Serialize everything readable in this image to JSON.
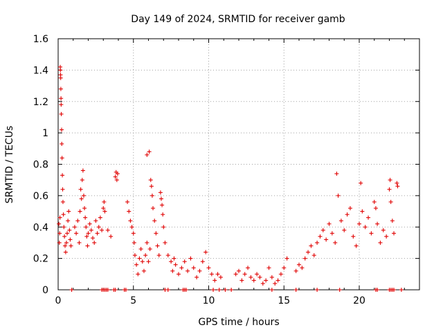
{
  "chart_data": {
    "type": "scatter",
    "title": "Day 149 of 2024, SRMTID for receiver gamb",
    "xlabel": "GPS time / hours",
    "ylabel": "SRMTID / TECUs",
    "xlim": [
      0,
      24
    ],
    "ylim": [
      0,
      1.6
    ],
    "xticks": [
      0,
      5,
      10,
      15,
      20
    ],
    "yticks": [
      0,
      0.2,
      0.4,
      0.6,
      0.8,
      1,
      1.2,
      1.4,
      1.6
    ],
    "xtick_labels": [
      "0",
      "5",
      "10",
      "15",
      "20"
    ],
    "ytick_labels": [
      "0",
      "0.2",
      "0.4",
      "0.6",
      "0.8",
      "1",
      "1.2",
      "1.4",
      "1.6"
    ],
    "grid": true,
    "marker": "plus",
    "color": "#e00000",
    "series": [
      {
        "name": "SRMTID",
        "points": [
          [
            0.05,
            0.42
          ],
          [
            0.08,
            0.3
          ],
          [
            0.1,
            0.36
          ],
          [
            0.12,
            0.46
          ],
          [
            0.14,
            1.42
          ],
          [
            0.15,
            1.4
          ],
          [
            0.16,
            1.37
          ],
          [
            0.17,
            1.35
          ],
          [
            0.18,
            1.28
          ],
          [
            0.19,
            1.22
          ],
          [
            0.2,
            1.18
          ],
          [
            0.21,
            1.12
          ],
          [
            0.23,
            1.02
          ],
          [
            0.24,
            0.93
          ],
          [
            0.26,
            0.84
          ],
          [
            0.28,
            0.73
          ],
          [
            0.3,
            0.64
          ],
          [
            0.32,
            0.56
          ],
          [
            0.35,
            0.48
          ],
          [
            0.38,
            0.4
          ],
          [
            0.42,
            0.34
          ],
          [
            0.46,
            0.28
          ],
          [
            0.5,
            0.24
          ],
          [
            0.55,
            0.3
          ],
          [
            0.6,
            0.36
          ],
          [
            0.65,
            0.44
          ],
          [
            0.7,
            0.5
          ],
          [
            0.75,
            0.38
          ],
          [
            0.8,
            0.32
          ],
          [
            0.85,
            0.28
          ],
          [
            1.1,
            0.4
          ],
          [
            1.2,
            0.36
          ],
          [
            1.3,
            0.44
          ],
          [
            1.4,
            0.3
          ],
          [
            1.45,
            0.5
          ],
          [
            1.5,
            0.64
          ],
          [
            1.55,
            0.58
          ],
          [
            1.6,
            0.7
          ],
          [
            1.65,
            0.76
          ],
          [
            1.7,
            0.6
          ],
          [
            1.75,
            0.52
          ],
          [
            1.8,
            0.46
          ],
          [
            1.85,
            0.4
          ],
          [
            1.9,
            0.34
          ],
          [
            1.95,
            0.28
          ],
          [
            2.0,
            0.36
          ],
          [
            2.1,
            0.42
          ],
          [
            2.2,
            0.38
          ],
          [
            2.3,
            0.33
          ],
          [
            2.4,
            0.3
          ],
          [
            2.5,
            0.44
          ],
          [
            2.6,
            0.36
          ],
          [
            2.7,
            0.4
          ],
          [
            2.8,
            0.46
          ],
          [
            2.9,
            0.38
          ],
          [
            3.0,
            0.52
          ],
          [
            3.05,
            0.56
          ],
          [
            3.1,
            0.5
          ],
          [
            3.3,
            0.38
          ],
          [
            3.5,
            0.34
          ],
          [
            3.8,
            0.72
          ],
          [
            3.85,
            0.75
          ],
          [
            3.9,
            0.7
          ],
          [
            3.95,
            0.74
          ],
          [
            4.6,
            0.56
          ],
          [
            4.7,
            0.5
          ],
          [
            4.8,
            0.44
          ],
          [
            4.9,
            0.4
          ],
          [
            5.0,
            0.36
          ],
          [
            5.05,
            0.3
          ],
          [
            5.1,
            0.22
          ],
          [
            5.2,
            0.16
          ],
          [
            5.3,
            0.1
          ],
          [
            5.4,
            0.2
          ],
          [
            5.5,
            0.26
          ],
          [
            5.6,
            0.18
          ],
          [
            5.7,
            0.12
          ],
          [
            5.8,
            0.22
          ],
          [
            5.9,
            0.3
          ],
          [
            6.0,
            0.18
          ],
          [
            6.1,
            0.26
          ],
          [
            5.9,
            0.86
          ],
          [
            6.05,
            0.88
          ],
          [
            6.15,
            0.7
          ],
          [
            6.2,
            0.66
          ],
          [
            6.25,
            0.6
          ],
          [
            6.3,
            0.52
          ],
          [
            6.4,
            0.44
          ],
          [
            6.5,
            0.36
          ],
          [
            6.6,
            0.28
          ],
          [
            6.7,
            0.22
          ],
          [
            6.8,
            0.62
          ],
          [
            6.85,
            0.58
          ],
          [
            6.9,
            0.54
          ],
          [
            6.95,
            0.48
          ],
          [
            7.0,
            0.4
          ],
          [
            7.1,
            0.3
          ],
          [
            7.3,
            0.22
          ],
          [
            7.5,
            0.18
          ],
          [
            7.6,
            0.12
          ],
          [
            7.7,
            0.2
          ],
          [
            7.8,
            0.16
          ],
          [
            8.0,
            0.1
          ],
          [
            8.2,
            0.14
          ],
          [
            8.4,
            0.18
          ],
          [
            8.6,
            0.12
          ],
          [
            8.8,
            0.2
          ],
          [
            9.0,
            0.14
          ],
          [
            9.2,
            0.08
          ],
          [
            9.4,
            0.12
          ],
          [
            9.6,
            0.18
          ],
          [
            9.8,
            0.24
          ],
          [
            10.0,
            0.14
          ],
          [
            10.2,
            0.1
          ],
          [
            10.4,
            0.06
          ],
          [
            10.6,
            0.1
          ],
          [
            10.8,
            0.08
          ],
          [
            11.8,
            0.1
          ],
          [
            12.0,
            0.12
          ],
          [
            12.2,
            0.06
          ],
          [
            12.4,
            0.1
          ],
          [
            12.6,
            0.14
          ],
          [
            12.8,
            0.08
          ],
          [
            13.0,
            0.06
          ],
          [
            13.2,
            0.1
          ],
          [
            13.4,
            0.08
          ],
          [
            13.6,
            0.04
          ],
          [
            13.8,
            0.06
          ],
          [
            14.0,
            0.14
          ],
          [
            14.2,
            0.08
          ],
          [
            14.4,
            0.04
          ],
          [
            14.6,
            0.06
          ],
          [
            14.8,
            0.1
          ],
          [
            15.0,
            0.14
          ],
          [
            15.2,
            0.2
          ],
          [
            15.8,
            0.12
          ],
          [
            16.0,
            0.16
          ],
          [
            16.2,
            0.14
          ],
          [
            16.4,
            0.2
          ],
          [
            16.6,
            0.24
          ],
          [
            16.8,
            0.28
          ],
          [
            17.0,
            0.22
          ],
          [
            17.2,
            0.3
          ],
          [
            17.4,
            0.34
          ],
          [
            17.6,
            0.38
          ],
          [
            17.8,
            0.32
          ],
          [
            18.0,
            0.42
          ],
          [
            18.2,
            0.36
          ],
          [
            18.4,
            0.3
          ],
          [
            18.5,
            0.74
          ],
          [
            18.6,
            0.6
          ],
          [
            18.8,
            0.44
          ],
          [
            19.0,
            0.38
          ],
          [
            19.2,
            0.48
          ],
          [
            19.4,
            0.52
          ],
          [
            19.6,
            0.34
          ],
          [
            19.8,
            0.28
          ],
          [
            20.0,
            0.42
          ],
          [
            20.1,
            0.68
          ],
          [
            20.2,
            0.5
          ],
          [
            20.4,
            0.4
          ],
          [
            20.6,
            0.46
          ],
          [
            20.8,
            0.36
          ],
          [
            21.0,
            0.56
          ],
          [
            21.1,
            0.52
          ],
          [
            21.2,
            0.42
          ],
          [
            21.4,
            0.3
          ],
          [
            21.6,
            0.38
          ],
          [
            21.8,
            0.34
          ],
          [
            22.0,
            0.64
          ],
          [
            22.05,
            0.7
          ],
          [
            22.1,
            0.56
          ],
          [
            22.2,
            0.44
          ],
          [
            22.3,
            0.36
          ],
          [
            22.5,
            0.68
          ],
          [
            22.55,
            0.66
          ],
          [
            0.9,
            0
          ],
          [
            2.9,
            0
          ],
          [
            3.0,
            0
          ],
          [
            3.1,
            0
          ],
          [
            3.2,
            0
          ],
          [
            3.3,
            0
          ],
          [
            3.7,
            0
          ],
          [
            3.8,
            0
          ],
          [
            4.4,
            0
          ],
          [
            4.5,
            0
          ],
          [
            7.1,
            0
          ],
          [
            7.3,
            0
          ],
          [
            8.3,
            0
          ],
          [
            8.4,
            0
          ],
          [
            8.5,
            0
          ],
          [
            10.3,
            0
          ],
          [
            10.7,
            0
          ],
          [
            11.1,
            0
          ],
          [
            11.5,
            0
          ],
          [
            14.2,
            0
          ],
          [
            15.8,
            0
          ],
          [
            17.2,
            0
          ],
          [
            18.7,
            0
          ],
          [
            21.1,
            0
          ],
          [
            21.2,
            0
          ],
          [
            22.0,
            0
          ],
          [
            22.1,
            0
          ],
          [
            22.2,
            0
          ],
          [
            22.3,
            0
          ],
          [
            22.8,
            0
          ]
        ]
      }
    ]
  }
}
